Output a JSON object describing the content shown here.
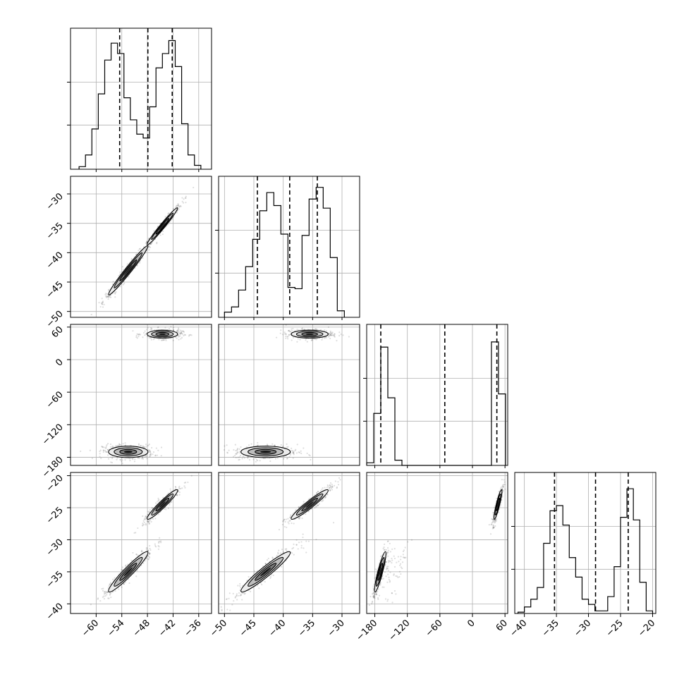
{
  "chart_data": {
    "type": "scatter",
    "plot_style": "corner",
    "grid": true,
    "parameters": [
      {
        "range": [
          -66,
          -33
        ],
        "ticks": [
          -60,
          -54,
          -48,
          -42,
          -36
        ],
        "tick_labels": [
          "−60",
          "−54",
          "−48",
          "−42",
          "−36"
        ],
        "quantile_lines": [
          -54.5,
          -47.9,
          -42.2
        ],
        "histogram": {
          "edges": [
            -64.0,
            -62.5,
            -61.0,
            -59.5,
            -58.0,
            -56.5,
            -55.0,
            -53.5,
            -52.0,
            -50.5,
            -49.0,
            -47.5,
            -46.0,
            -44.5,
            -43.0,
            -41.5,
            -40.0,
            -38.5,
            -37.0,
            -35.5
          ],
          "counts": [
            0.02,
            0.11,
            0.31,
            0.58,
            0.84,
            0.97,
            0.89,
            0.55,
            0.38,
            0.27,
            0.24,
            0.48,
            0.78,
            0.89,
            0.99,
            0.79,
            0.35,
            0.11,
            0.03
          ]
        }
      },
      {
        "range": [
          -51,
          -27
        ],
        "ticks": [
          -50,
          -45,
          -40,
          -35,
          -30
        ],
        "tick_labels": [
          "−50",
          "−45",
          "−40",
          "−35",
          "−30"
        ],
        "quantile_lines": [
          -44.4,
          -38.9,
          -34.2
        ],
        "histogram": {
          "edges": [
            -50.0,
            -48.8,
            -47.6,
            -46.4,
            -45.2,
            -44.0,
            -42.8,
            -41.6,
            -40.4,
            -39.2,
            -38.0,
            -36.8,
            -35.6,
            -34.4,
            -33.2,
            -32.0,
            -30.8,
            -29.6
          ],
          "counts": [
            0.04,
            0.08,
            0.21,
            0.39,
            0.6,
            0.82,
            0.96,
            0.86,
            0.64,
            0.23,
            0.22,
            0.63,
            0.91,
            1.0,
            0.84,
            0.46,
            0.05
          ]
        }
      },
      {
        "range": [
          -195,
          65
        ],
        "ticks": [
          -180,
          -120,
          -60,
          0,
          60
        ],
        "tick_labels": [
          "−180",
          "−120",
          "−60",
          "0",
          "60"
        ],
        "quantile_lines": [
          -169,
          -51,
          45
        ],
        "histogram": {
          "edges": [
            -195,
            -182,
            -169,
            -156,
            -143,
            -130,
            35,
            48,
            61
          ],
          "counts": [
            0.02,
            0.4,
            0.91,
            0.52,
            0.04,
            0,
            0.95,
            0.55
          ]
        }
      },
      {
        "range": [
          -41.5,
          -19.5
        ],
        "ticks": [
          -40,
          -35,
          -30,
          -25,
          -20
        ],
        "tick_labels": [
          "−40",
          "−35",
          "−30",
          "−25",
          "−20"
        ],
        "quantile_lines": [
          -35.3,
          -28.9,
          -23.8
        ],
        "histogram": {
          "edges": [
            -41.0,
            -40.0,
            -39.0,
            -38.0,
            -37.0,
            -36.0,
            -35.0,
            -34.0,
            -33.0,
            -32.0,
            -31.0,
            -30.0,
            -29.0,
            -28.0,
            -27.0,
            -26.0,
            -25.0,
            -24.0,
            -23.0,
            -22.0,
            -21.0,
            -20.0
          ],
          "counts": [
            0.01,
            0.05,
            0.11,
            0.2,
            0.54,
            0.79,
            0.83,
            0.68,
            0.43,
            0.28,
            0.11,
            0.07,
            0.02,
            0.02,
            0.13,
            0.36,
            0.74,
            0.96,
            0.72,
            0.24,
            0.02
          ]
        }
      }
    ],
    "blobs": [
      {
        "mean": [
          -52.5,
          -43.0,
          -170,
          -35.0
        ],
        "spread": [
          2.2,
          2.0,
          5,
          1.5
        ]
      },
      {
        "mean": [
          -44.5,
          -35.5,
          47,
          -24.5
        ],
        "spread": [
          1.7,
          1.5,
          3.5,
          1.1
        ]
      }
    ],
    "pair_corr": {
      "1-0": 0.98,
      "3-0": 0.95,
      "3-1": 0.95,
      "3-2": 0.9
    },
    "tail_extension": {
      "2": [
        0,
        40
      ]
    }
  }
}
